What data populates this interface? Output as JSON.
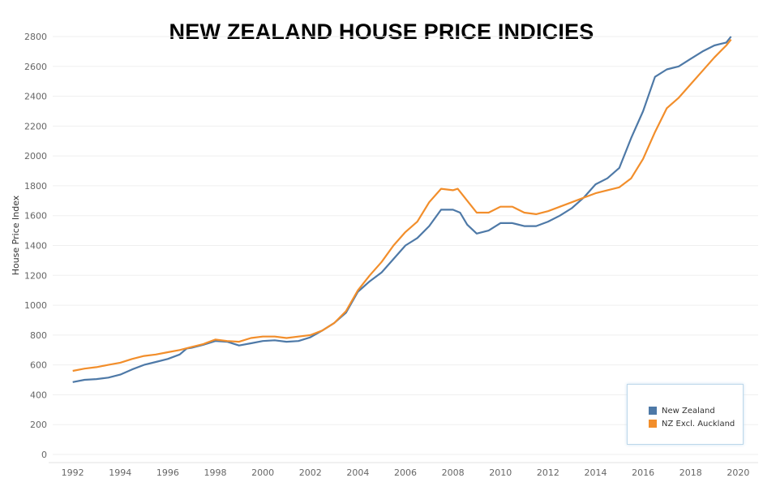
{
  "chart_data": {
    "type": "line",
    "title": "NEW ZEALAND HOUSE PRICE INDICIES",
    "xlabel": "",
    "ylabel": "House Price Index",
    "xlim": [
      1991.5,
      2020.5
    ],
    "ylim": [
      0,
      2800
    ],
    "x_ticks": [
      1992,
      1994,
      1996,
      1998,
      2000,
      2002,
      2004,
      2006,
      2008,
      2010,
      2012,
      2014,
      2016,
      2018,
      2020
    ],
    "y_ticks": [
      0,
      200,
      400,
      600,
      800,
      1000,
      1200,
      1400,
      1600,
      1800,
      2000,
      2200,
      2400,
      2600,
      2800
    ],
    "grid": "horizontal",
    "legend": "bottom-right",
    "series": [
      {
        "name": "New Zealand",
        "color": "#4e79a7",
        "points": [
          [
            1992.0,
            485
          ],
          [
            1992.5,
            500
          ],
          [
            1993.0,
            505
          ],
          [
            1993.5,
            515
          ],
          [
            1994.0,
            535
          ],
          [
            1994.5,
            570
          ],
          [
            1995.0,
            600
          ],
          [
            1995.5,
            620
          ],
          [
            1996.0,
            640
          ],
          [
            1996.5,
            670
          ],
          [
            1996.8,
            710
          ],
          [
            1997.0,
            715
          ],
          [
            1997.5,
            735
          ],
          [
            1998.0,
            760
          ],
          [
            1998.5,
            755
          ],
          [
            1999.0,
            730
          ],
          [
            1999.5,
            745
          ],
          [
            2000.0,
            760
          ],
          [
            2000.5,
            765
          ],
          [
            2001.0,
            755
          ],
          [
            2001.5,
            760
          ],
          [
            2002.0,
            785
          ],
          [
            2002.5,
            830
          ],
          [
            2003.0,
            880
          ],
          [
            2003.5,
            950
          ],
          [
            2004.0,
            1090
          ],
          [
            2004.5,
            1160
          ],
          [
            2005.0,
            1220
          ],
          [
            2005.5,
            1310
          ],
          [
            2006.0,
            1400
          ],
          [
            2006.5,
            1450
          ],
          [
            2007.0,
            1530
          ],
          [
            2007.5,
            1640
          ],
          [
            2008.0,
            1640
          ],
          [
            2008.3,
            1620
          ],
          [
            2008.6,
            1540
          ],
          [
            2009.0,
            1480
          ],
          [
            2009.5,
            1500
          ],
          [
            2010.0,
            1550
          ],
          [
            2010.5,
            1550
          ],
          [
            2011.0,
            1530
          ],
          [
            2011.5,
            1530
          ],
          [
            2012.0,
            1560
          ],
          [
            2012.5,
            1600
          ],
          [
            2013.0,
            1650
          ],
          [
            2013.5,
            1720
          ],
          [
            2014.0,
            1810
          ],
          [
            2014.5,
            1850
          ],
          [
            2015.0,
            1920
          ],
          [
            2015.5,
            2120
          ],
          [
            2016.0,
            2300
          ],
          [
            2016.5,
            2530
          ],
          [
            2017.0,
            2580
          ],
          [
            2017.5,
            2600
          ],
          [
            2018.0,
            2650
          ],
          [
            2018.5,
            2700
          ],
          [
            2019.0,
            2740
          ],
          [
            2019.5,
            2760
          ],
          [
            2019.7,
            2800
          ]
        ]
      },
      {
        "name": "NZ Excl. Auckland",
        "color": "#f28e2b",
        "points": [
          [
            1992.0,
            560
          ],
          [
            1992.5,
            575
          ],
          [
            1993.0,
            585
          ],
          [
            1993.5,
            600
          ],
          [
            1994.0,
            615
          ],
          [
            1994.5,
            640
          ],
          [
            1995.0,
            660
          ],
          [
            1995.5,
            670
          ],
          [
            1996.0,
            685
          ],
          [
            1996.5,
            700
          ],
          [
            1997.0,
            720
          ],
          [
            1997.5,
            740
          ],
          [
            1998.0,
            770
          ],
          [
            1998.5,
            760
          ],
          [
            1999.0,
            755
          ],
          [
            1999.5,
            780
          ],
          [
            2000.0,
            790
          ],
          [
            2000.5,
            790
          ],
          [
            2001.0,
            780
          ],
          [
            2001.5,
            790
          ],
          [
            2002.0,
            800
          ],
          [
            2002.5,
            830
          ],
          [
            2003.0,
            880
          ],
          [
            2003.5,
            960
          ],
          [
            2004.0,
            1100
          ],
          [
            2004.5,
            1200
          ],
          [
            2005.0,
            1290
          ],
          [
            2005.5,
            1400
          ],
          [
            2006.0,
            1490
          ],
          [
            2006.5,
            1560
          ],
          [
            2007.0,
            1690
          ],
          [
            2007.5,
            1780
          ],
          [
            2008.0,
            1770
          ],
          [
            2008.2,
            1780
          ],
          [
            2008.6,
            1700
          ],
          [
            2009.0,
            1620
          ],
          [
            2009.5,
            1620
          ],
          [
            2010.0,
            1660
          ],
          [
            2010.5,
            1660
          ],
          [
            2011.0,
            1620
          ],
          [
            2011.5,
            1610
          ],
          [
            2012.0,
            1630
          ],
          [
            2012.5,
            1660
          ],
          [
            2013.0,
            1690
          ],
          [
            2013.5,
            1720
          ],
          [
            2014.0,
            1750
          ],
          [
            2014.5,
            1770
          ],
          [
            2015.0,
            1790
          ],
          [
            2015.5,
            1850
          ],
          [
            2016.0,
            1980
          ],
          [
            2016.5,
            2160
          ],
          [
            2017.0,
            2320
          ],
          [
            2017.5,
            2390
          ],
          [
            2018.0,
            2480
          ],
          [
            2018.5,
            2570
          ],
          [
            2019.0,
            2660
          ],
          [
            2019.5,
            2740
          ],
          [
            2019.7,
            2780
          ]
        ]
      }
    ]
  }
}
